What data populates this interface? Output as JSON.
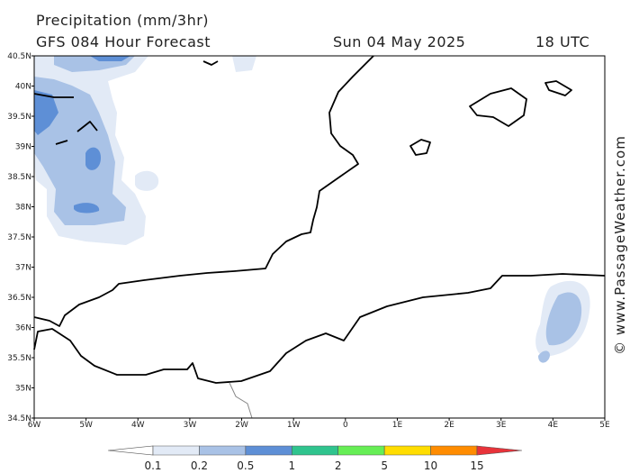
{
  "header": {
    "title": "Precipitation (mm/3hr)",
    "subtitle": "GFS 084 Hour Forecast",
    "date": "Sun 04 May 2025",
    "time": "18 UTC"
  },
  "map": {
    "lat_labels": [
      "40.5N",
      "40N",
      "39.5N",
      "39N",
      "38.5N",
      "38N",
      "37.5N",
      "37N",
      "36.5N",
      "36N",
      "35.5N",
      "35N",
      "34.5N"
    ],
    "lon_labels": [
      "6W",
      "5W",
      "4W",
      "3W",
      "2W",
      "1W",
      "0",
      "1E",
      "2E",
      "3E",
      "4E",
      "5E"
    ]
  },
  "legend": {
    "labels": [
      0.1,
      0.2,
      0.5,
      1,
      2,
      5,
      10,
      15
    ],
    "colors": [
      "#ffffff",
      "#e2eaf6",
      "#a9c2e6",
      "#5e8fd6",
      "#2fc48e",
      "#66ee55",
      "#ffdd00",
      "#ff8c00",
      "#e8333a"
    ]
  },
  "credit": "© www.PassageWeather.com"
}
